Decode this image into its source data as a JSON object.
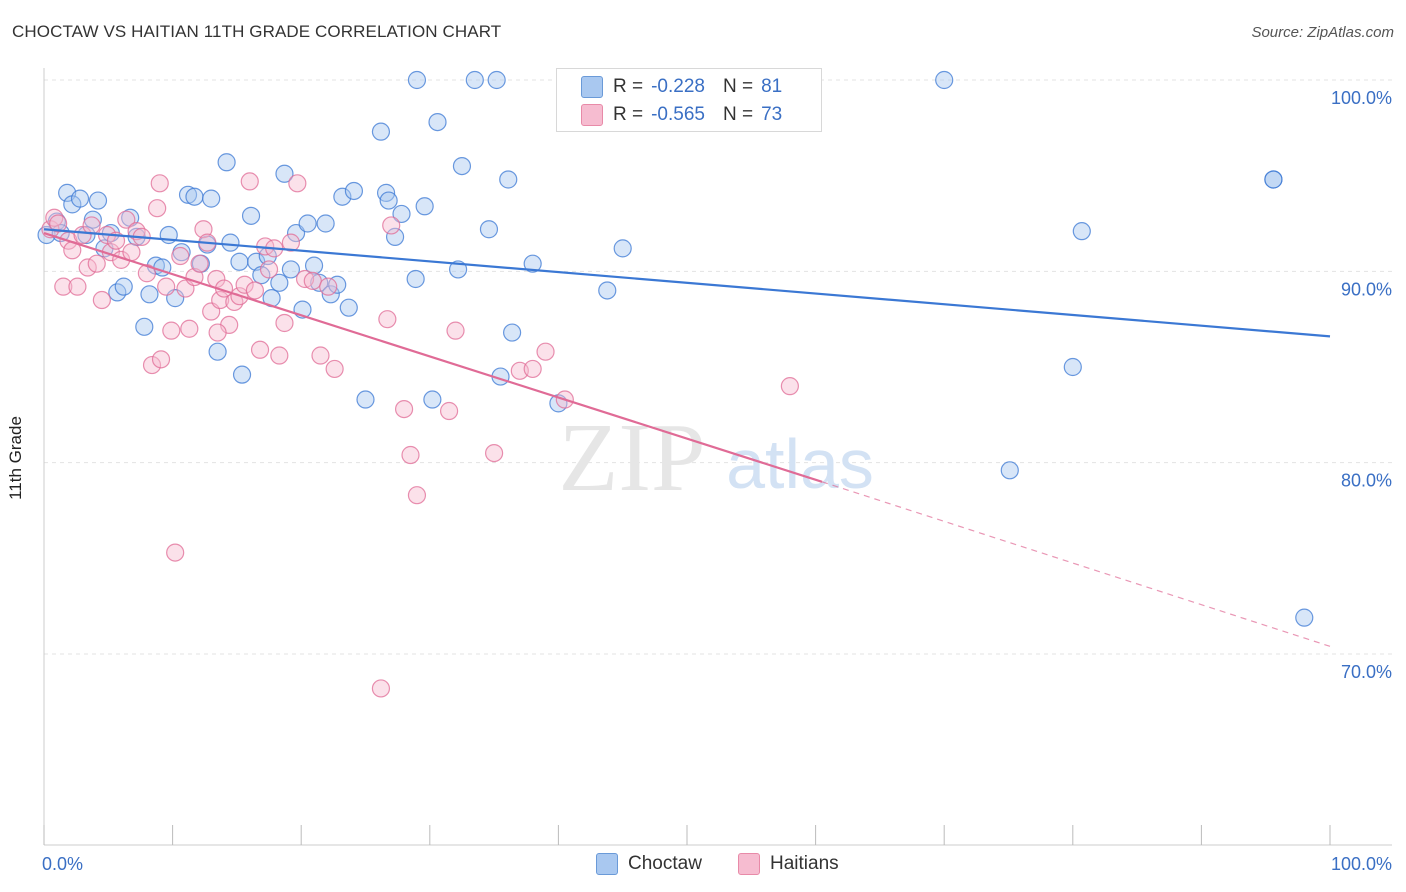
{
  "header": {
    "title": "CHOCTAW VS HAITIAN 11TH GRADE CORRELATION CHART",
    "source": "Source: ZipAtlas.com"
  },
  "legend": {
    "rows": [
      {
        "r_label": "R =",
        "r_value": "-0.228",
        "n_label": "N =",
        "n_value": "81",
        "color": "#a9c8f0",
        "border": "#6a9ad8"
      },
      {
        "r_label": "R =",
        "r_value": "-0.565",
        "n_label": "N =",
        "n_value": "73",
        "color": "#f6bcd0",
        "border": "#e88aa8"
      }
    ]
  },
  "bottom_legend": {
    "items": [
      {
        "label": "Choctaw",
        "color": "#a9c8f0",
        "border": "#6a9ad8"
      },
      {
        "label": "Haitians",
        "color": "#f6bcd0",
        "border": "#e88aa8"
      }
    ]
  },
  "watermark": {
    "zip": "ZIP",
    "atlas": "atlas"
  },
  "chart_data": {
    "type": "scatter",
    "title": "CHOCTAW VS HAITIAN 11TH GRADE CORRELATION CHART",
    "xlabel": "",
    "ylabel": "11th Grade",
    "xlim": [
      0,
      100
    ],
    "ylim": [
      60.5,
      101.5
    ],
    "x_tick_labels": [
      "0.0%",
      "100.0%"
    ],
    "y_ticks": [
      70,
      80,
      90,
      100
    ],
    "y_tick_labels": [
      "70.0%",
      "80.0%",
      "90.0%",
      "100.0%"
    ],
    "grid": true,
    "colors": {
      "choctaw": "#3b78d4",
      "haitians": "#e06b96"
    },
    "series": [
      {
        "name": "Choctaw",
        "color": "#3b78d4",
        "fill": "#a9c8f0",
        "trend": {
          "x": [
            0,
            100
          ],
          "y": [
            92.2,
            86.6
          ]
        },
        "points": [
          [
            0.2,
            91.9
          ],
          [
            1.0,
            92.6
          ],
          [
            1.3,
            92.0
          ],
          [
            1.8,
            94.1
          ],
          [
            2.2,
            93.5
          ],
          [
            2.8,
            93.8
          ],
          [
            3.3,
            91.9
          ],
          [
            3.8,
            92.7
          ],
          [
            4.2,
            93.7
          ],
          [
            4.7,
            91.2
          ],
          [
            5.2,
            92.0
          ],
          [
            5.7,
            88.9
          ],
          [
            6.2,
            89.2
          ],
          [
            6.7,
            92.8
          ],
          [
            7.2,
            91.8
          ],
          [
            7.8,
            87.1
          ],
          [
            8.2,
            88.8
          ],
          [
            8.7,
            90.3
          ],
          [
            9.2,
            90.2
          ],
          [
            9.7,
            91.9
          ],
          [
            10.2,
            88.6
          ],
          [
            10.7,
            91.0
          ],
          [
            11.2,
            94.0
          ],
          [
            11.7,
            93.9
          ],
          [
            12.2,
            90.4
          ],
          [
            12.7,
            91.4
          ],
          [
            13.0,
            93.8
          ],
          [
            13.5,
            85.8
          ],
          [
            14.2,
            95.7
          ],
          [
            14.5,
            91.5
          ],
          [
            15.2,
            90.5
          ],
          [
            15.4,
            84.6
          ],
          [
            16.1,
            92.9
          ],
          [
            16.5,
            90.5
          ],
          [
            16.9,
            89.8
          ],
          [
            17.4,
            90.8
          ],
          [
            17.7,
            88.6
          ],
          [
            18.3,
            89.4
          ],
          [
            18.7,
            95.1
          ],
          [
            19.2,
            90.1
          ],
          [
            19.6,
            92.0
          ],
          [
            20.1,
            88.0
          ],
          [
            20.5,
            92.5
          ],
          [
            21.0,
            90.3
          ],
          [
            21.4,
            89.4
          ],
          [
            21.9,
            92.5
          ],
          [
            22.3,
            88.8
          ],
          [
            22.8,
            89.3
          ],
          [
            23.2,
            93.9
          ],
          [
            23.7,
            88.1
          ],
          [
            24.1,
            94.2
          ],
          [
            25.0,
            83.3
          ],
          [
            26.2,
            97.3
          ],
          [
            26.6,
            94.1
          ],
          [
            26.8,
            93.7
          ],
          [
            27.3,
            91.8
          ],
          [
            27.8,
            93.0
          ],
          [
            28.9,
            89.6
          ],
          [
            29.0,
            100.0
          ],
          [
            29.6,
            93.4
          ],
          [
            30.2,
            83.3
          ],
          [
            30.6,
            97.8
          ],
          [
            32.2,
            90.1
          ],
          [
            32.5,
            95.5
          ],
          [
            33.5,
            100.0
          ],
          [
            35.2,
            100.0
          ],
          [
            34.6,
            92.2
          ],
          [
            35.5,
            84.5
          ],
          [
            36.1,
            94.8
          ],
          [
            36.4,
            86.8
          ],
          [
            38.0,
            90.4
          ],
          [
            40.0,
            83.1
          ],
          [
            43.8,
            89.0
          ],
          [
            45.0,
            91.2
          ],
          [
            70.0,
            100.0
          ],
          [
            75.1,
            79.6
          ],
          [
            80.0,
            85.0
          ],
          [
            80.7,
            92.1
          ],
          [
            95.6,
            94.8
          ],
          [
            98.0,
            71.9
          ],
          [
            95.6,
            94.8
          ]
        ]
      },
      {
        "name": "Haitians",
        "color": "#e06b96",
        "fill": "#f6bcd0",
        "trend": {
          "x": [
            0,
            60.5
          ],
          "y": [
            92.0,
            79.0
          ]
        },
        "trend_dashed": {
          "x": [
            60.5,
            100
          ],
          "y": [
            79.0,
            70.4
          ]
        },
        "points": [
          [
            0.5,
            92.2
          ],
          [
            0.8,
            92.8
          ],
          [
            1.1,
            92.5
          ],
          [
            1.5,
            89.2
          ],
          [
            1.9,
            91.6
          ],
          [
            2.2,
            91.1
          ],
          [
            2.6,
            89.2
          ],
          [
            3.0,
            91.9
          ],
          [
            3.4,
            90.2
          ],
          [
            3.7,
            92.4
          ],
          [
            4.1,
            90.4
          ],
          [
            4.5,
            88.5
          ],
          [
            4.9,
            91.9
          ],
          [
            5.2,
            91.0
          ],
          [
            5.6,
            91.6
          ],
          [
            6.0,
            90.6
          ],
          [
            6.4,
            92.7
          ],
          [
            6.8,
            91.0
          ],
          [
            7.2,
            92.1
          ],
          [
            7.6,
            91.8
          ],
          [
            8.0,
            89.9
          ],
          [
            8.4,
            85.1
          ],
          [
            8.8,
            93.3
          ],
          [
            9.1,
            85.4
          ],
          [
            9.5,
            89.2
          ],
          [
            9.9,
            86.9
          ],
          [
            10.2,
            75.3
          ],
          [
            10.6,
            90.8
          ],
          [
            11.0,
            89.1
          ],
          [
            11.3,
            87.0
          ],
          [
            11.7,
            89.7
          ],
          [
            12.1,
            90.4
          ],
          [
            12.4,
            92.2
          ],
          [
            12.7,
            91.5
          ],
          [
            13.0,
            87.9
          ],
          [
            13.4,
            89.6
          ],
          [
            13.7,
            88.5
          ],
          [
            14.0,
            89.1
          ],
          [
            14.4,
            87.2
          ],
          [
            14.8,
            88.4
          ],
          [
            15.2,
            88.7
          ],
          [
            15.6,
            89.3
          ],
          [
            16.0,
            94.7
          ],
          [
            16.4,
            89.0
          ],
          [
            16.8,
            85.9
          ],
          [
            17.2,
            91.3
          ],
          [
            17.5,
            90.1
          ],
          [
            17.9,
            91.2
          ],
          [
            18.3,
            85.6
          ],
          [
            18.7,
            87.3
          ],
          [
            19.2,
            91.5
          ],
          [
            19.7,
            94.6
          ],
          [
            20.3,
            89.6
          ],
          [
            20.9,
            89.5
          ],
          [
            21.5,
            85.6
          ],
          [
            22.1,
            89.2
          ],
          [
            26.2,
            68.2
          ],
          [
            26.7,
            87.5
          ],
          [
            28.0,
            82.8
          ],
          [
            28.5,
            80.4
          ],
          [
            29.0,
            78.3
          ],
          [
            31.5,
            82.7
          ],
          [
            32.0,
            86.9
          ],
          [
            35.0,
            80.5
          ],
          [
            37.0,
            84.8
          ],
          [
            38.0,
            84.9
          ],
          [
            39.0,
            85.8
          ],
          [
            40.5,
            83.3
          ],
          [
            58.0,
            84.0
          ],
          [
            9.0,
            94.6
          ],
          [
            13.5,
            86.8
          ],
          [
            22.6,
            84.9
          ],
          [
            27.0,
            92.4
          ]
        ]
      }
    ]
  }
}
